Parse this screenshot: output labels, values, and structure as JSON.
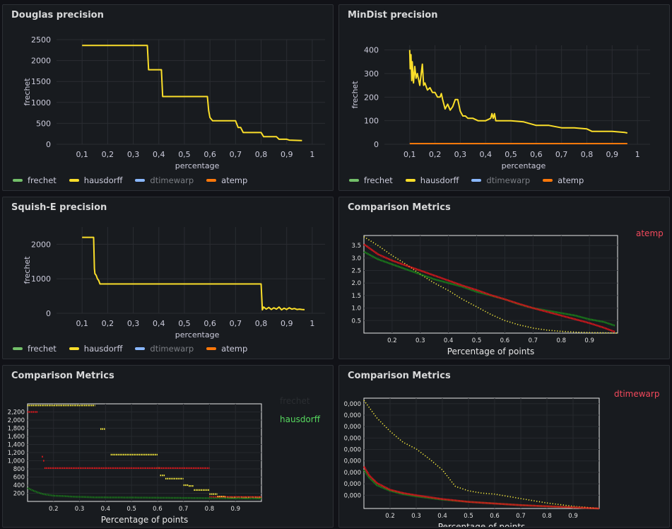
{
  "colors": {
    "frechet": "#73bf69",
    "hausdorff": "#fade2a",
    "dtimewarp": "#8ab8ff",
    "atemp": "#ff780a",
    "red": "#f2161b",
    "green": "#1a8a1a",
    "yellow": "#fff23d"
  },
  "legend": [
    {
      "key": "frechet",
      "label": "frechet",
      "dim": false
    },
    {
      "key": "hausdorff",
      "label": "hausdorff",
      "dim": false
    },
    {
      "key": "dtimewarp",
      "label": "dtimewarp",
      "dim": true
    },
    {
      "key": "atemp",
      "label": "atemp",
      "dim": false
    }
  ],
  "panels": [
    {
      "title": "Douglas precision"
    },
    {
      "title": "MinDist precision"
    },
    {
      "title": "Squish-E precision"
    },
    {
      "title": "Comparison Metrics",
      "side_labels": [
        {
          "text": "atemp",
          "color": "#f2495c"
        }
      ]
    },
    {
      "title": "Comparison Metrics",
      "side_labels": [
        {
          "text": "frechet",
          "color": "#2a2d31"
        },
        {
          "text": "hausdorff",
          "color": "#56d85e"
        }
      ]
    },
    {
      "title": "Comparison Metrics",
      "side_labels": [
        {
          "text": "dtimewarp",
          "color": "#f2495c"
        }
      ]
    }
  ],
  "chart_data": [
    {
      "type": "line",
      "title": "Douglas precision",
      "xlabel": "percentage",
      "ylabel": "frechet",
      "xlim": [
        0.0,
        1.05
      ],
      "ylim": [
        0,
        2500
      ],
      "xticks": [
        "0,1",
        "0,2",
        "0,3",
        "0,4",
        "0,5",
        "0,6",
        "0,7",
        "0,8",
        "0,9",
        "1"
      ],
      "yticks": [
        "0",
        "500",
        "1000",
        "1500",
        "2000",
        "2500"
      ],
      "series": [
        {
          "name": "hausdorff",
          "color_key": "hausdorff",
          "x": [
            0.1,
            0.355,
            0.36,
            0.41,
            0.415,
            0.59,
            0.595,
            0.6,
            0.61,
            0.7,
            0.71,
            0.72,
            0.73,
            0.8,
            0.81,
            0.86,
            0.87,
            0.9,
            0.91,
            0.96
          ],
          "y": [
            2360,
            2360,
            1780,
            1780,
            1140,
            1140,
            800,
            640,
            560,
            560,
            400,
            400,
            280,
            280,
            180,
            180,
            120,
            120,
            100,
            90
          ]
        }
      ]
    },
    {
      "type": "line",
      "title": "MinDist precision",
      "xlabel": "percentage",
      "ylabel": "frechet",
      "xlim": [
        0.0,
        1.05
      ],
      "ylim": [
        0,
        420
      ],
      "xticks": [
        "0,1",
        "0,2",
        "0,3",
        "0,4",
        "0,5",
        "0,6",
        "0,7",
        "0,8",
        "0,9",
        "1"
      ],
      "yticks": [
        "0",
        "100",
        "200",
        "300",
        "400"
      ],
      "series": [
        {
          "name": "hausdorff",
          "color_key": "hausdorff",
          "x": [
            0.1,
            0.102,
            0.105,
            0.108,
            0.11,
            0.115,
            0.12,
            0.125,
            0.13,
            0.14,
            0.15,
            0.155,
            0.16,
            0.17,
            0.18,
            0.19,
            0.2,
            0.21,
            0.22,
            0.225,
            0.23,
            0.24,
            0.25,
            0.26,
            0.27,
            0.28,
            0.29,
            0.3,
            0.31,
            0.32,
            0.33,
            0.35,
            0.37,
            0.39,
            0.4,
            0.42,
            0.425,
            0.43,
            0.435,
            0.44,
            0.45,
            0.5,
            0.55,
            0.6,
            0.65,
            0.7,
            0.75,
            0.8,
            0.82,
            0.85,
            0.9,
            0.95,
            0.96
          ],
          "y": [
            400,
            320,
            380,
            270,
            350,
            260,
            330,
            280,
            300,
            250,
            340,
            250,
            260,
            230,
            240,
            220,
            220,
            200,
            200,
            215,
            190,
            150,
            170,
            145,
            160,
            190,
            190,
            140,
            120,
            120,
            110,
            110,
            100,
            100,
            100,
            110,
            130,
            110,
            130,
            100,
            100,
            100,
            95,
            80,
            80,
            70,
            70,
            65,
            55,
            55,
            55,
            50,
            48
          ]
        },
        {
          "name": "atemp",
          "color_key": "atemp",
          "x": [
            0.1,
            0.96
          ],
          "y": [
            3,
            3
          ]
        }
      ]
    },
    {
      "type": "line",
      "title": "Squish-E precision",
      "xlabel": "percentage",
      "ylabel": "frechet",
      "xlim": [
        0.0,
        1.05
      ],
      "ylim": [
        0,
        2500
      ],
      "xticks": [
        "0,1",
        "0,2",
        "0,3",
        "0,4",
        "0,5",
        "0,6",
        "0,7",
        "0,8",
        "0,9",
        "1"
      ],
      "yticks": [
        "0",
        "1000",
        "2000"
      ],
      "series": [
        {
          "name": "hausdorff",
          "color_key": "hausdorff",
          "x": [
            0.1,
            0.145,
            0.148,
            0.15,
            0.155,
            0.16,
            0.165,
            0.17,
            0.8,
            0.805,
            0.81,
            0.82,
            0.83,
            0.84,
            0.85,
            0.86,
            0.87,
            0.88,
            0.89,
            0.9,
            0.91,
            0.92,
            0.93,
            0.94,
            0.95,
            0.96,
            0.97
          ],
          "y": [
            2200,
            2200,
            1300,
            1150,
            1100,
            1000,
            950,
            850,
            850,
            100,
            180,
            120,
            170,
            110,
            160,
            120,
            180,
            100,
            150,
            110,
            160,
            120,
            140,
            110,
            120,
            110,
            105
          ]
        }
      ]
    },
    {
      "type": "line",
      "title": "Comparison Metrics",
      "xlabel": "Percentage of points",
      "xlim": [
        0.1,
        1.0
      ],
      "ylim": [
        0,
        3.9
      ],
      "xticks": [
        "0.2",
        "0.3",
        "0.4",
        "0.5",
        "0.6",
        "0.7",
        "0.8",
        "0.9"
      ],
      "yticks": [
        "0.5",
        "1.0",
        "1.5",
        "2.0",
        "2.5",
        "3.0",
        "3.5"
      ],
      "series": [
        {
          "name": "",
          "color_key": "yellow",
          "style": "dotted",
          "x": [
            0.1,
            0.15,
            0.2,
            0.25,
            0.3,
            0.35,
            0.4,
            0.45,
            0.5,
            0.55,
            0.6,
            0.65,
            0.7,
            0.75,
            0.8,
            0.85,
            0.9,
            0.95,
            1.0
          ],
          "y": [
            3.85,
            3.5,
            3.1,
            2.75,
            2.35,
            2.0,
            1.7,
            1.35,
            1.05,
            0.75,
            0.5,
            0.33,
            0.2,
            0.12,
            0.07,
            0.04,
            0.02,
            0.01,
            0.0
          ]
        },
        {
          "name": "",
          "color_key": "green",
          "style": "solid-thick",
          "x": [
            0.1,
            0.15,
            0.2,
            0.25,
            0.3,
            0.35,
            0.4,
            0.45,
            0.5,
            0.55,
            0.6,
            0.65,
            0.7,
            0.75,
            0.8,
            0.85,
            0.9,
            0.95,
            0.99
          ],
          "y": [
            3.25,
            2.95,
            2.75,
            2.55,
            2.35,
            2.15,
            2.0,
            1.85,
            1.65,
            1.5,
            1.35,
            1.15,
            1.0,
            0.9,
            0.8,
            0.7,
            0.55,
            0.45,
            0.3
          ]
        },
        {
          "name": "",
          "color_key": "red",
          "style": "solid-thick",
          "x": [
            0.1,
            0.15,
            0.2,
            0.25,
            0.3,
            0.35,
            0.4,
            0.45,
            0.5,
            0.55,
            0.6,
            0.65,
            0.7,
            0.75,
            0.8,
            0.85,
            0.9,
            0.95,
            0.99
          ],
          "y": [
            3.55,
            3.15,
            2.9,
            2.7,
            2.5,
            2.3,
            2.1,
            1.9,
            1.72,
            1.52,
            1.35,
            1.17,
            1.0,
            0.85,
            0.7,
            0.55,
            0.4,
            0.22,
            0.05
          ]
        }
      ]
    },
    {
      "type": "scatter",
      "title": "Comparison Metrics",
      "xlabel": "Percentage of points",
      "xlim": [
        0.1,
        1.0
      ],
      "ylim": [
        0,
        2400
      ],
      "xticks": [
        "0.2",
        "0.3",
        "0.4",
        "0.5",
        "0.6",
        "0.7",
        "0.8",
        "0.9"
      ],
      "yticks": [
        "200",
        "400",
        "600",
        "800",
        "1,000",
        "1,200",
        "1,400",
        "1,600",
        "1,800",
        "2,000",
        "2,200"
      ],
      "series": [
        {
          "name": "",
          "color_key": "yellow",
          "style": "dashes",
          "segments": [
            [
              0.1,
              0.36,
              2360
            ],
            [
              0.38,
              0.4,
              1780
            ],
            [
              0.42,
              0.6,
              1150
            ],
            [
              0.6,
              0.61,
              820
            ],
            [
              0.61,
              0.63,
              640
            ],
            [
              0.63,
              0.7,
              560
            ],
            [
              0.7,
              0.72,
              400
            ],
            [
              0.72,
              0.74,
              380
            ],
            [
              0.74,
              0.8,
              280
            ],
            [
              0.8,
              0.83,
              180
            ],
            [
              0.83,
              0.86,
              120
            ],
            [
              0.86,
              1.0,
              100
            ]
          ]
        },
        {
          "name": "",
          "color_key": "red",
          "style": "dashes",
          "segments": [
            [
              0.1,
              0.14,
              2200
            ],
            [
              0.155,
              0.16,
              1100
            ],
            [
              0.16,
              0.165,
              1000
            ],
            [
              0.165,
              0.8,
              820
            ],
            [
              0.8,
              1.0,
              110
            ]
          ]
        },
        {
          "name": "",
          "color_key": "green",
          "style": "scatter",
          "x": [
            0.1,
            0.12,
            0.14,
            0.16,
            0.18,
            0.2,
            0.24,
            0.28,
            0.32,
            0.36,
            0.4,
            0.5,
            0.6,
            0.7,
            0.8,
            0.9,
            1.0
          ],
          "y": [
            330,
            270,
            220,
            180,
            160,
            140,
            130,
            115,
            110,
            100,
            100,
            95,
            90,
            85,
            80,
            75,
            70
          ]
        }
      ]
    },
    {
      "type": "line",
      "title": "Comparison Metrics",
      "xlabel": "Percentage of points",
      "xlim": [
        0.1,
        1.0
      ],
      "ylim": [
        0,
        1.0
      ],
      "xticks": [
        "0.2",
        "0.3",
        "0.4",
        "0.5",
        "0.6",
        "0.7",
        "0.8",
        "0.9"
      ],
      "yticks": [
        "0,000",
        "0,000",
        "0,000",
        "0,000",
        "0,000",
        "0,000",
        "0,000",
        "0,000",
        "0,000"
      ],
      "series": [
        {
          "name": "",
          "color_key": "yellow",
          "style": "dotted",
          "x": [
            0.1,
            0.15,
            0.2,
            0.25,
            0.3,
            0.35,
            0.4,
            0.45,
            0.5,
            0.55,
            0.6,
            0.65,
            0.7,
            0.75,
            0.8,
            0.85,
            0.9,
            0.95,
            1.0
          ],
          "y": [
            0.98,
            0.82,
            0.7,
            0.6,
            0.54,
            0.45,
            0.35,
            0.2,
            0.16,
            0.14,
            0.13,
            0.11,
            0.09,
            0.07,
            0.05,
            0.035,
            0.02,
            0.01,
            0.0
          ]
        },
        {
          "name": "",
          "color_key": "green",
          "style": "solid-thick",
          "x": [
            0.1,
            0.12,
            0.15,
            0.2,
            0.25,
            0.3,
            0.4,
            0.5,
            0.6,
            0.7,
            0.8,
            0.9,
            1.0
          ],
          "y": [
            0.35,
            0.28,
            0.21,
            0.16,
            0.13,
            0.11,
            0.08,
            0.06,
            0.045,
            0.03,
            0.02,
            0.01,
            0.0
          ]
        },
        {
          "name": "",
          "color_key": "red",
          "style": "solid-thick",
          "x": [
            0.1,
            0.12,
            0.15,
            0.2,
            0.25,
            0.3,
            0.4,
            0.5,
            0.6,
            0.7,
            0.8,
            0.9,
            1.0
          ],
          "y": [
            0.38,
            0.3,
            0.23,
            0.17,
            0.14,
            0.12,
            0.085,
            0.06,
            0.045,
            0.03,
            0.02,
            0.01,
            0.0
          ]
        }
      ]
    }
  ]
}
